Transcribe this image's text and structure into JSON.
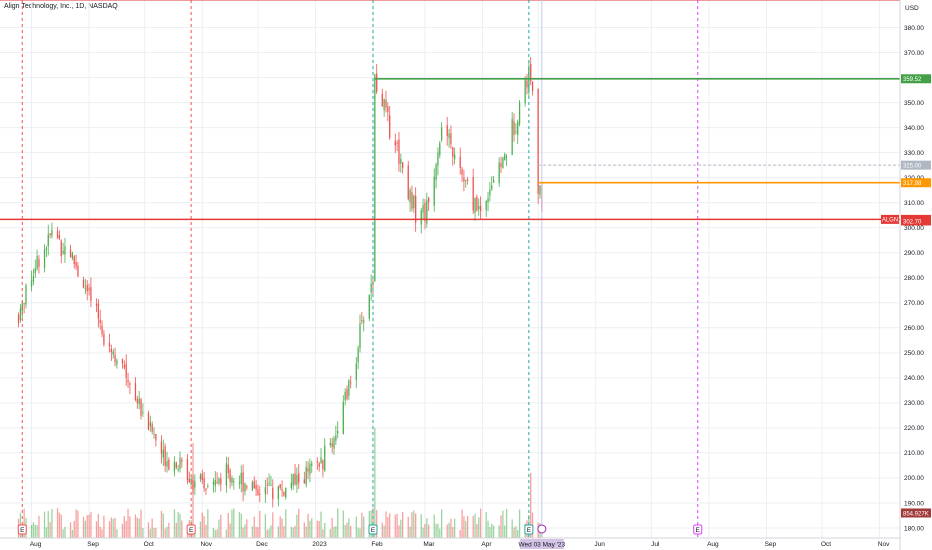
{
  "title": "Align Technology, Inc., 1D, NASDAQ",
  "currency": "USD",
  "colors": {
    "up": "#4caf50",
    "down": "#ef5350",
    "support": "#e53935",
    "resistance": "#43a047",
    "mid": "#ff9800",
    "earnings": "#e040fb",
    "grid": "#eceff3"
  },
  "chart_data": {
    "type": "candlestick",
    "title": "Align Technology, Inc., 1D, NASDAQ",
    "ylim": [
      176,
      391
    ],
    "y_ticks": [
      380,
      370,
      360,
      350,
      340,
      330,
      320,
      310,
      300,
      290,
      280,
      270,
      260,
      250,
      240,
      230,
      220,
      210,
      200,
      190,
      180
    ],
    "x_ticks": [
      "Aug",
      "Sep",
      "Oct",
      "Nov",
      "Dec",
      "2023",
      "Feb",
      "Mar",
      "Apr",
      "May",
      "Jun",
      "Jul",
      "Aug",
      "Sep",
      "Oct",
      "Nov"
    ],
    "x_tick_dates": [
      "2022-08-01",
      "2022-09-01",
      "2022-10-01",
      "2022-11-01",
      "2022-12-01",
      "2023-01-01",
      "2023-02-01",
      "2023-03-01",
      "2023-04-01",
      "2023-05-01",
      "2023-06-01",
      "2023-07-01",
      "2023-08-01",
      "2023-09-01",
      "2023-10-01",
      "2023-11-01"
    ],
    "price_path": [
      [
        "2022-07-25",
        265
      ],
      [
        "2022-08-01",
        282
      ],
      [
        "2022-08-12",
        298
      ],
      [
        "2022-08-22",
        290
      ],
      [
        "2022-09-01",
        272
      ],
      [
        "2022-09-13",
        252
      ],
      [
        "2022-09-22",
        240
      ],
      [
        "2022-10-03",
        222
      ],
      [
        "2022-10-10",
        210
      ],
      [
        "2022-10-20",
        205
      ],
      [
        "2022-10-27",
        200
      ],
      [
        "2022-11-01",
        195
      ],
      [
        "2022-11-08",
        198
      ],
      [
        "2022-11-15",
        202
      ],
      [
        "2022-12-01",
        196
      ],
      [
        "2022-12-15",
        195
      ],
      [
        "2023-01-03",
        205
      ],
      [
        "2023-01-12",
        218
      ],
      [
        "2023-01-20",
        238
      ],
      [
        "2023-01-27",
        265
      ],
      [
        "2023-02-01",
        280
      ],
      [
        "2023-02-02",
        360
      ],
      [
        "2023-02-06",
        350
      ],
      [
        "2023-02-15",
        330
      ],
      [
        "2023-02-23",
        308
      ],
      [
        "2023-03-02",
        306
      ],
      [
        "2023-03-10",
        340
      ],
      [
        "2023-03-17",
        328
      ],
      [
        "2023-03-24",
        315
      ],
      [
        "2023-03-31",
        306
      ],
      [
        "2023-04-06",
        318
      ],
      [
        "2023-04-14",
        330
      ],
      [
        "2023-04-21",
        350
      ],
      [
        "2023-04-26",
        362
      ],
      [
        "2023-04-28",
        357
      ],
      [
        "2023-05-01",
        318
      ],
      [
        "2023-05-02",
        312
      ],
      [
        "2023-05-03",
        303
      ]
    ],
    "horizontal_levels": [
      {
        "price": 359.52,
        "color": "resistance",
        "start": "2023-02-02"
      },
      {
        "price": 325.0,
        "color": "gray-dashed",
        "start": "2023-05-01"
      },
      {
        "price": 317.98,
        "color": "mid",
        "start": "2023-05-01"
      },
      {
        "price": 303.33,
        "color": "support",
        "start": "2022-07-15"
      }
    ],
    "vertical_markers": [
      {
        "date": "2022-07-27",
        "type": "earnings",
        "color": "red"
      },
      {
        "date": "2022-10-26",
        "type": "earnings",
        "color": "red"
      },
      {
        "date": "2023-02-01",
        "type": "earnings",
        "color": "green"
      },
      {
        "date": "2023-04-26",
        "type": "earnings",
        "color": "green"
      },
      {
        "date": "2023-07-26",
        "type": "earnings",
        "color": "magenta"
      }
    ],
    "price_labels": [
      {
        "text": "359.52",
        "price": 359.52,
        "color": "#43a047"
      },
      {
        "text": "325.00",
        "price": 325.0,
        "color": "#b0b7c3"
      },
      {
        "text": "317.98",
        "price": 317.98,
        "color": "#ff9800"
      },
      {
        "text": "303.33",
        "price": 303.33,
        "color": "#e53935"
      },
      {
        "text": "302.70",
        "price": 302.7,
        "color": "#e53935"
      },
      {
        "text": "854.927K",
        "price": 186.0,
        "color": "#a33a3a"
      }
    ],
    "symbol_label": "ALGN",
    "crosshair_date_label": "Wed 03 May '23",
    "volume": {
      "label": "854.927K"
    }
  }
}
